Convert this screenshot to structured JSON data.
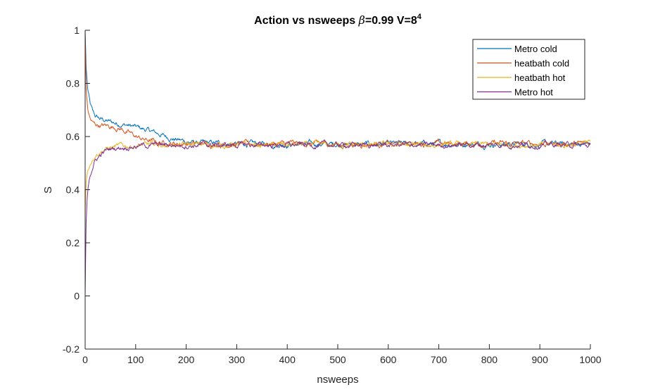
{
  "chart_data": {
    "type": "line",
    "title_prefix": "Action vs nsweeps ",
    "title_beta": "β",
    "title_suffix": "=0.99 V=8",
    "title_superscript": "4",
    "xlabel": "nsweeps",
    "ylabel": "S",
    "xlim": [
      0,
      1000
    ],
    "ylim": [
      -0.2,
      1
    ],
    "xticks": [
      0,
      100,
      200,
      300,
      400,
      500,
      600,
      700,
      800,
      900,
      1000
    ],
    "yticks": [
      -0.2,
      0,
      0.2,
      0.4,
      0.6,
      0.8,
      1
    ],
    "ytick_labels": [
      "-0.2",
      "0",
      "0.2",
      "0.4",
      "0.6",
      "0.8",
      "1"
    ],
    "grid": false,
    "legend_position": "top-right",
    "series": [
      {
        "name": "Metro cold",
        "color": "#0072BD",
        "points": [
          [
            0,
            1.0
          ],
          [
            2,
            0.86
          ],
          [
            5,
            0.78
          ],
          [
            10,
            0.72
          ],
          [
            15,
            0.69
          ],
          [
            20,
            0.675
          ],
          [
            30,
            0.665
          ],
          [
            40,
            0.66
          ],
          [
            50,
            0.655
          ],
          [
            60,
            0.65
          ],
          [
            70,
            0.648
          ],
          [
            80,
            0.645
          ],
          [
            90,
            0.64
          ],
          [
            100,
            0.635
          ],
          [
            110,
            0.63
          ],
          [
            120,
            0.625
          ],
          [
            130,
            0.62
          ],
          [
            140,
            0.613
          ],
          [
            150,
            0.607
          ],
          [
            160,
            0.6
          ],
          [
            170,
            0.595
          ],
          [
            180,
            0.59
          ],
          [
            190,
            0.585
          ],
          [
            200,
            0.582
          ],
          [
            210,
            0.578
          ],
          [
            220,
            0.576
          ],
          [
            230,
            0.575
          ],
          [
            240,
            0.574
          ],
          [
            250,
            0.574
          ],
          [
            270,
            0.574
          ],
          [
            300,
            0.572
          ],
          [
            350,
            0.571
          ],
          [
            400,
            0.572
          ],
          [
            450,
            0.572
          ],
          [
            500,
            0.571
          ],
          [
            550,
            0.57
          ],
          [
            600,
            0.571
          ],
          [
            650,
            0.572
          ],
          [
            700,
            0.572
          ],
          [
            750,
            0.572
          ],
          [
            800,
            0.572
          ],
          [
            850,
            0.572
          ],
          [
            900,
            0.572
          ],
          [
            950,
            0.572
          ],
          [
            1000,
            0.572
          ]
        ]
      },
      {
        "name": "heatbath cold",
        "color": "#D95319",
        "points": [
          [
            0,
            1.0
          ],
          [
            2,
            0.78
          ],
          [
            5,
            0.7
          ],
          [
            10,
            0.665
          ],
          [
            15,
            0.65
          ],
          [
            20,
            0.645
          ],
          [
            30,
            0.642
          ],
          [
            40,
            0.64
          ],
          [
            50,
            0.638
          ],
          [
            60,
            0.635
          ],
          [
            70,
            0.63
          ],
          [
            80,
            0.62
          ],
          [
            90,
            0.61
          ],
          [
            100,
            0.6
          ],
          [
            110,
            0.592
          ],
          [
            120,
            0.587
          ],
          [
            130,
            0.583
          ],
          [
            140,
            0.58
          ],
          [
            150,
            0.578
          ],
          [
            170,
            0.575
          ],
          [
            200,
            0.573
          ],
          [
            250,
            0.572
          ],
          [
            300,
            0.572
          ],
          [
            350,
            0.572
          ],
          [
            400,
            0.573
          ],
          [
            450,
            0.572
          ],
          [
            500,
            0.572
          ],
          [
            550,
            0.571
          ],
          [
            600,
            0.572
          ],
          [
            650,
            0.573
          ],
          [
            700,
            0.573
          ],
          [
            750,
            0.573
          ],
          [
            800,
            0.573
          ],
          [
            850,
            0.573
          ],
          [
            900,
            0.573
          ],
          [
            950,
            0.573
          ],
          [
            1000,
            0.573
          ]
        ]
      },
      {
        "name": "heatbath hot",
        "color": "#EDB120",
        "points": [
          [
            0,
            0.3
          ],
          [
            2,
            0.43
          ],
          [
            5,
            0.47
          ],
          [
            10,
            0.5
          ],
          [
            15,
            0.52
          ],
          [
            20,
            0.535
          ],
          [
            30,
            0.545
          ],
          [
            40,
            0.553
          ],
          [
            50,
            0.558
          ],
          [
            70,
            0.563
          ],
          [
            100,
            0.566
          ],
          [
            130,
            0.568
          ],
          [
            160,
            0.569
          ],
          [
            200,
            0.569
          ],
          [
            250,
            0.569
          ],
          [
            300,
            0.568
          ],
          [
            350,
            0.568
          ],
          [
            400,
            0.568
          ],
          [
            450,
            0.568
          ],
          [
            500,
            0.568
          ],
          [
            550,
            0.568
          ],
          [
            600,
            0.568
          ],
          [
            650,
            0.568
          ],
          [
            700,
            0.569
          ],
          [
            750,
            0.569
          ],
          [
            800,
            0.569
          ],
          [
            850,
            0.569
          ],
          [
            900,
            0.569
          ],
          [
            950,
            0.569
          ],
          [
            1000,
            0.575
          ]
        ]
      },
      {
        "name": "Metro hot",
        "color": "#7E2F8E",
        "points": [
          [
            0,
            0.0
          ],
          [
            1,
            0.15
          ],
          [
            2,
            0.28
          ],
          [
            4,
            0.36
          ],
          [
            6,
            0.41
          ],
          [
            8,
            0.44
          ],
          [
            10,
            0.46
          ],
          [
            15,
            0.49
          ],
          [
            20,
            0.51
          ],
          [
            30,
            0.53
          ],
          [
            40,
            0.545
          ],
          [
            50,
            0.553
          ],
          [
            70,
            0.56
          ],
          [
            100,
            0.565
          ],
          [
            130,
            0.567
          ],
          [
            160,
            0.568
          ],
          [
            200,
            0.568
          ],
          [
            250,
            0.568
          ],
          [
            300,
            0.568
          ],
          [
            350,
            0.568
          ],
          [
            400,
            0.568
          ],
          [
            450,
            0.568
          ],
          [
            500,
            0.568
          ],
          [
            550,
            0.568
          ],
          [
            600,
            0.568
          ],
          [
            650,
            0.568
          ],
          [
            700,
            0.568
          ],
          [
            750,
            0.569
          ],
          [
            800,
            0.569
          ],
          [
            850,
            0.569
          ],
          [
            900,
            0.569
          ],
          [
            950,
            0.569
          ],
          [
            1000,
            0.565
          ]
        ]
      }
    ]
  }
}
